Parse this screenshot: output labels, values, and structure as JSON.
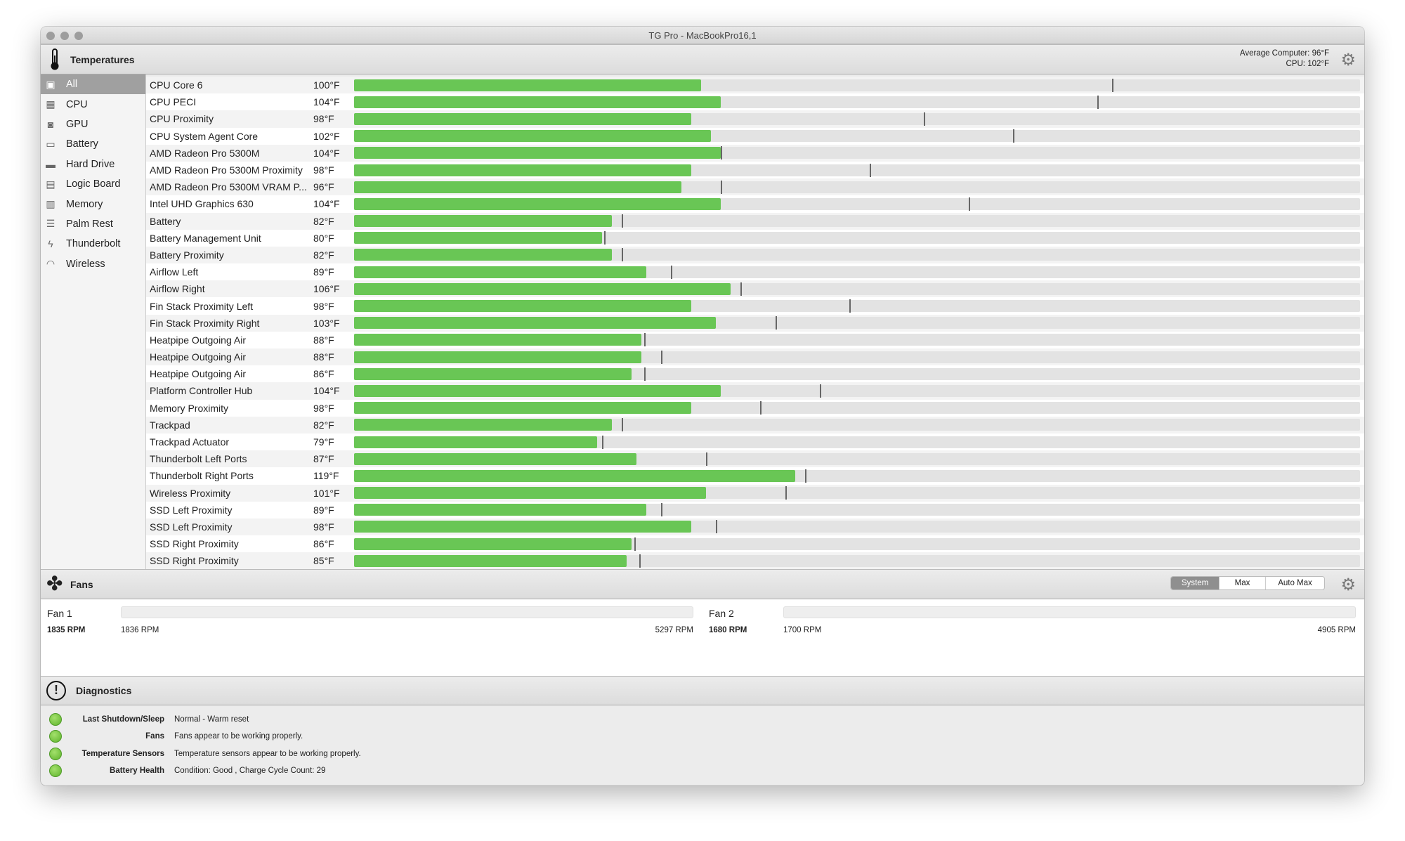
{
  "window": {
    "title": "TG Pro - MacBookPro16,1"
  },
  "temperatures": {
    "title": "Temperatures",
    "avg_label": "Average Computer:",
    "avg_value": "96°F",
    "cpu_label": "CPU:",
    "cpu_value": "102°F"
  },
  "sidebar": {
    "items": [
      {
        "label": "All",
        "icon": "computer-icon"
      },
      {
        "label": "CPU",
        "icon": "cpu-icon"
      },
      {
        "label": "GPU",
        "icon": "gpu-icon"
      },
      {
        "label": "Battery",
        "icon": "battery-icon"
      },
      {
        "label": "Hard Drive",
        "icon": "hard-drive-icon"
      },
      {
        "label": "Logic Board",
        "icon": "logic-board-icon"
      },
      {
        "label": "Memory",
        "icon": "memory-icon"
      },
      {
        "label": "Palm Rest",
        "icon": "palm-rest-icon"
      },
      {
        "label": "Thunderbolt",
        "icon": "thunderbolt-icon"
      },
      {
        "label": "Wireless",
        "icon": "wireless-icon"
      }
    ]
  },
  "scale": {
    "min_f": 30,
    "max_f": 233
  },
  "sensors": [
    {
      "name": "CPU Core 6",
      "value": "100°F",
      "temp": 100,
      "max": 183
    },
    {
      "name": "CPU PECI",
      "value": "104°F",
      "temp": 104,
      "max": 180
    },
    {
      "name": "CPU Proximity",
      "value": "98°F",
      "temp": 98,
      "max": 145
    },
    {
      "name": "CPU System Agent Core",
      "value": "102°F",
      "temp": 102,
      "max": 163
    },
    {
      "name": "AMD Radeon Pro 5300M",
      "value": "104°F",
      "temp": 104,
      "max": 104
    },
    {
      "name": "AMD Radeon Pro 5300M Proximity",
      "value": "98°F",
      "temp": 98,
      "max": 134
    },
    {
      "name": "AMD Radeon Pro 5300M VRAM P...",
      "value": "96°F",
      "temp": 96,
      "max": 104
    },
    {
      "name": "Intel UHD Graphics 630",
      "value": "104°F",
      "temp": 104,
      "max": 154
    },
    {
      "name": "Battery",
      "value": "82°F",
      "temp": 82,
      "max": 84
    },
    {
      "name": "Battery Management Unit",
      "value": "80°F",
      "temp": 80,
      "max": 80.5
    },
    {
      "name": "Battery Proximity",
      "value": "82°F",
      "temp": 82,
      "max": 84
    },
    {
      "name": "Airflow Left",
      "value": "89°F",
      "temp": 89,
      "max": 94
    },
    {
      "name": "Airflow Right",
      "value": "106°F",
      "temp": 106,
      "max": 108
    },
    {
      "name": "Fin Stack Proximity Left",
      "value": "98°F",
      "temp": 98,
      "max": 130
    },
    {
      "name": "Fin Stack Proximity Right",
      "value": "103°F",
      "temp": 103,
      "max": 115
    },
    {
      "name": "Heatpipe Outgoing Air",
      "value": "88°F",
      "temp": 88,
      "max": 88.5
    },
    {
      "name": "Heatpipe Outgoing Air",
      "value": "88°F",
      "temp": 88,
      "max": 92
    },
    {
      "name": "Heatpipe Outgoing Air",
      "value": "86°F",
      "temp": 86,
      "max": 88.5
    },
    {
      "name": "Platform Controller Hub",
      "value": "104°F",
      "temp": 104,
      "max": 124
    },
    {
      "name": "Memory Proximity",
      "value": "98°F",
      "temp": 98,
      "max": 112
    },
    {
      "name": "Trackpad",
      "value": "82°F",
      "temp": 82,
      "max": 84
    },
    {
      "name": "Trackpad Actuator",
      "value": "79°F",
      "temp": 79,
      "max": 80
    },
    {
      "name": "Thunderbolt Left Ports",
      "value": "87°F",
      "temp": 87,
      "max": 101
    },
    {
      "name": "Thunderbolt Right Ports",
      "value": "119°F",
      "temp": 119,
      "max": 121
    },
    {
      "name": "Wireless Proximity",
      "value": "101°F",
      "temp": 101,
      "max": 117
    },
    {
      "name": "SSD Left Proximity",
      "value": "89°F",
      "temp": 89,
      "max": 92
    },
    {
      "name": "SSD Left Proximity",
      "value": "98°F",
      "temp": 98,
      "max": 103
    },
    {
      "name": "SSD Right Proximity",
      "value": "86°F",
      "temp": 86,
      "max": 86.5
    },
    {
      "name": "SSD Right Proximity",
      "value": "85°F",
      "temp": 85,
      "max": 87.5
    }
  ],
  "fans": {
    "title": "Fans",
    "modes": [
      "System",
      "Max",
      "Auto Max"
    ],
    "selected_mode": "System",
    "items": [
      {
        "name": "Fan 1",
        "current": "1835 RPM",
        "min": "1836 RPM",
        "max": "5297 RPM"
      },
      {
        "name": "Fan 2",
        "current": "1680 RPM",
        "min": "1700 RPM",
        "max": "4905 RPM"
      }
    ]
  },
  "diagnostics": {
    "title": "Diagnostics",
    "items": [
      {
        "label": "Last Shutdown/Sleep",
        "text": "Normal - Warm reset",
        "status_color": "#6cc63a"
      },
      {
        "label": "Fans",
        "text": "Fans appear to be working properly.",
        "status_color": "#6cc63a"
      },
      {
        "label": "Temperature Sensors",
        "text": "Temperature sensors appear to be working properly.",
        "status_color": "#6cc63a"
      },
      {
        "label": "Battery Health",
        "text": "Condition: Good , Charge Cycle Count: 29",
        "status_color": "#6cc63a"
      }
    ]
  }
}
